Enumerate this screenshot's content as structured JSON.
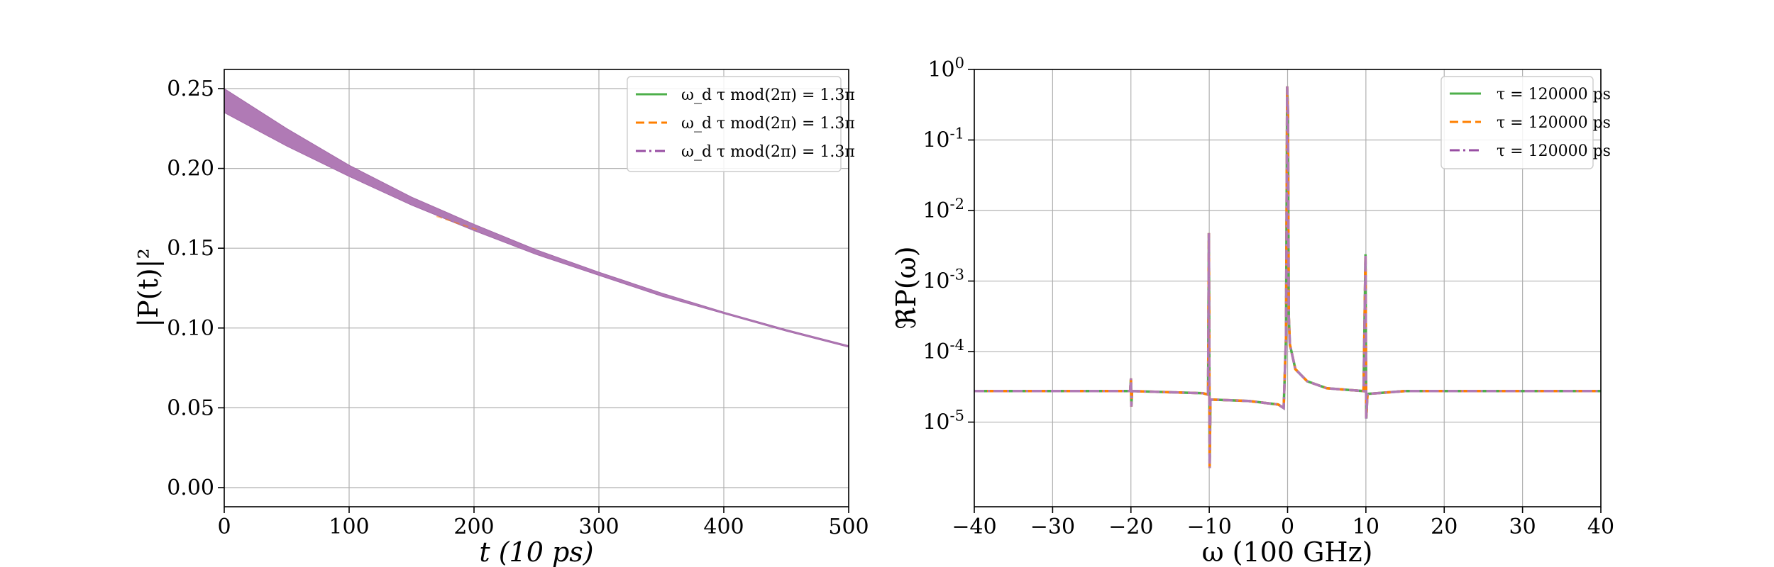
{
  "colors": {
    "green": "#4daf4a",
    "orange": "#ff7f00",
    "purple": "#984ea3"
  },
  "chart_data": [
    {
      "type": "area",
      "xlabel": "t (10 ps)",
      "ylabel": "|P(t)|²",
      "xlim": [
        0,
        500
      ],
      "ylim": [
        -0.012,
        0.262
      ],
      "xticks": [
        0,
        100,
        200,
        300,
        400,
        500
      ],
      "xtick_labels": [
        "0",
        "100",
        "200",
        "300",
        "400",
        "500"
      ],
      "yticks": [
        0.0,
        0.05,
        0.1,
        0.15,
        0.2,
        0.25
      ],
      "ytick_labels": [
        "0.00",
        "0.05",
        "0.10",
        "0.15",
        "0.20",
        "0.25"
      ],
      "grid": true,
      "legend_position": "top-right",
      "series": [
        {
          "name": "ω_d τ mod(2π) = 1.3π",
          "color": "#4daf4a",
          "style": "solid"
        },
        {
          "name": "ω_d τ mod(2π) = 1.3π",
          "color": "#ff7f00",
          "style": "dashed"
        },
        {
          "name": "ω_d τ mod(2π) = 1.3π",
          "color": "#984ea3",
          "style": "dashdot"
        }
      ],
      "band": {
        "x": [
          0,
          50,
          100,
          150,
          200,
          250,
          300,
          350,
          400,
          450,
          500
        ],
        "upper": [
          0.25,
          0.225,
          0.202,
          0.182,
          0.165,
          0.149,
          0.135,
          0.122,
          0.11,
          0.099,
          0.089
        ],
        "lower": [
          0.235,
          0.214,
          0.195,
          0.177,
          0.161,
          0.146,
          0.133,
          0.12,
          0.109,
          0.098,
          0.088
        ]
      }
    },
    {
      "type": "line",
      "xlabel": "ω (100 GHz)",
      "ylabel": "ℜP(ω)",
      "xlim": [
        -40,
        40
      ],
      "ylog": true,
      "ylim_exp": [
        -6.2,
        0.0
      ],
      "xticks": [
        -40,
        -30,
        -20,
        -10,
        0,
        10,
        20,
        30,
        40
      ],
      "xtick_labels": [
        "−40",
        "−30",
        "−20",
        "−10",
        "0",
        "10",
        "20",
        "30",
        "40"
      ],
      "yticks_exp": [
        0,
        -1,
        -2,
        -3,
        -4,
        -5
      ],
      "ytick_labels": [
        "10^0",
        "10^-1",
        "10^-2",
        "10^-3",
        "10^-4",
        "10^-5"
      ],
      "grid": true,
      "legend_position": "top-right",
      "series": [
        {
          "name": "τ = 120000 ps",
          "color": "#4daf4a",
          "style": "solid"
        },
        {
          "name": "τ = 120000 ps",
          "color": "#ff7f00",
          "style": "dashed"
        },
        {
          "name": "τ = 120000 ps",
          "color": "#984ea3",
          "style": "dashdot"
        }
      ],
      "baseline_log": -4.56,
      "features": [
        {
          "x": -20,
          "top_log": -4.38,
          "bottom_log": -4.78
        },
        {
          "x": -10,
          "top_log": -2.32,
          "bottom_log": -5.65
        },
        {
          "x": 0,
          "top_log": -0.24,
          "bottom_log": -4.6
        },
        {
          "x": 10,
          "top_log": -2.62,
          "bottom_log": -4.95
        }
      ]
    }
  ]
}
